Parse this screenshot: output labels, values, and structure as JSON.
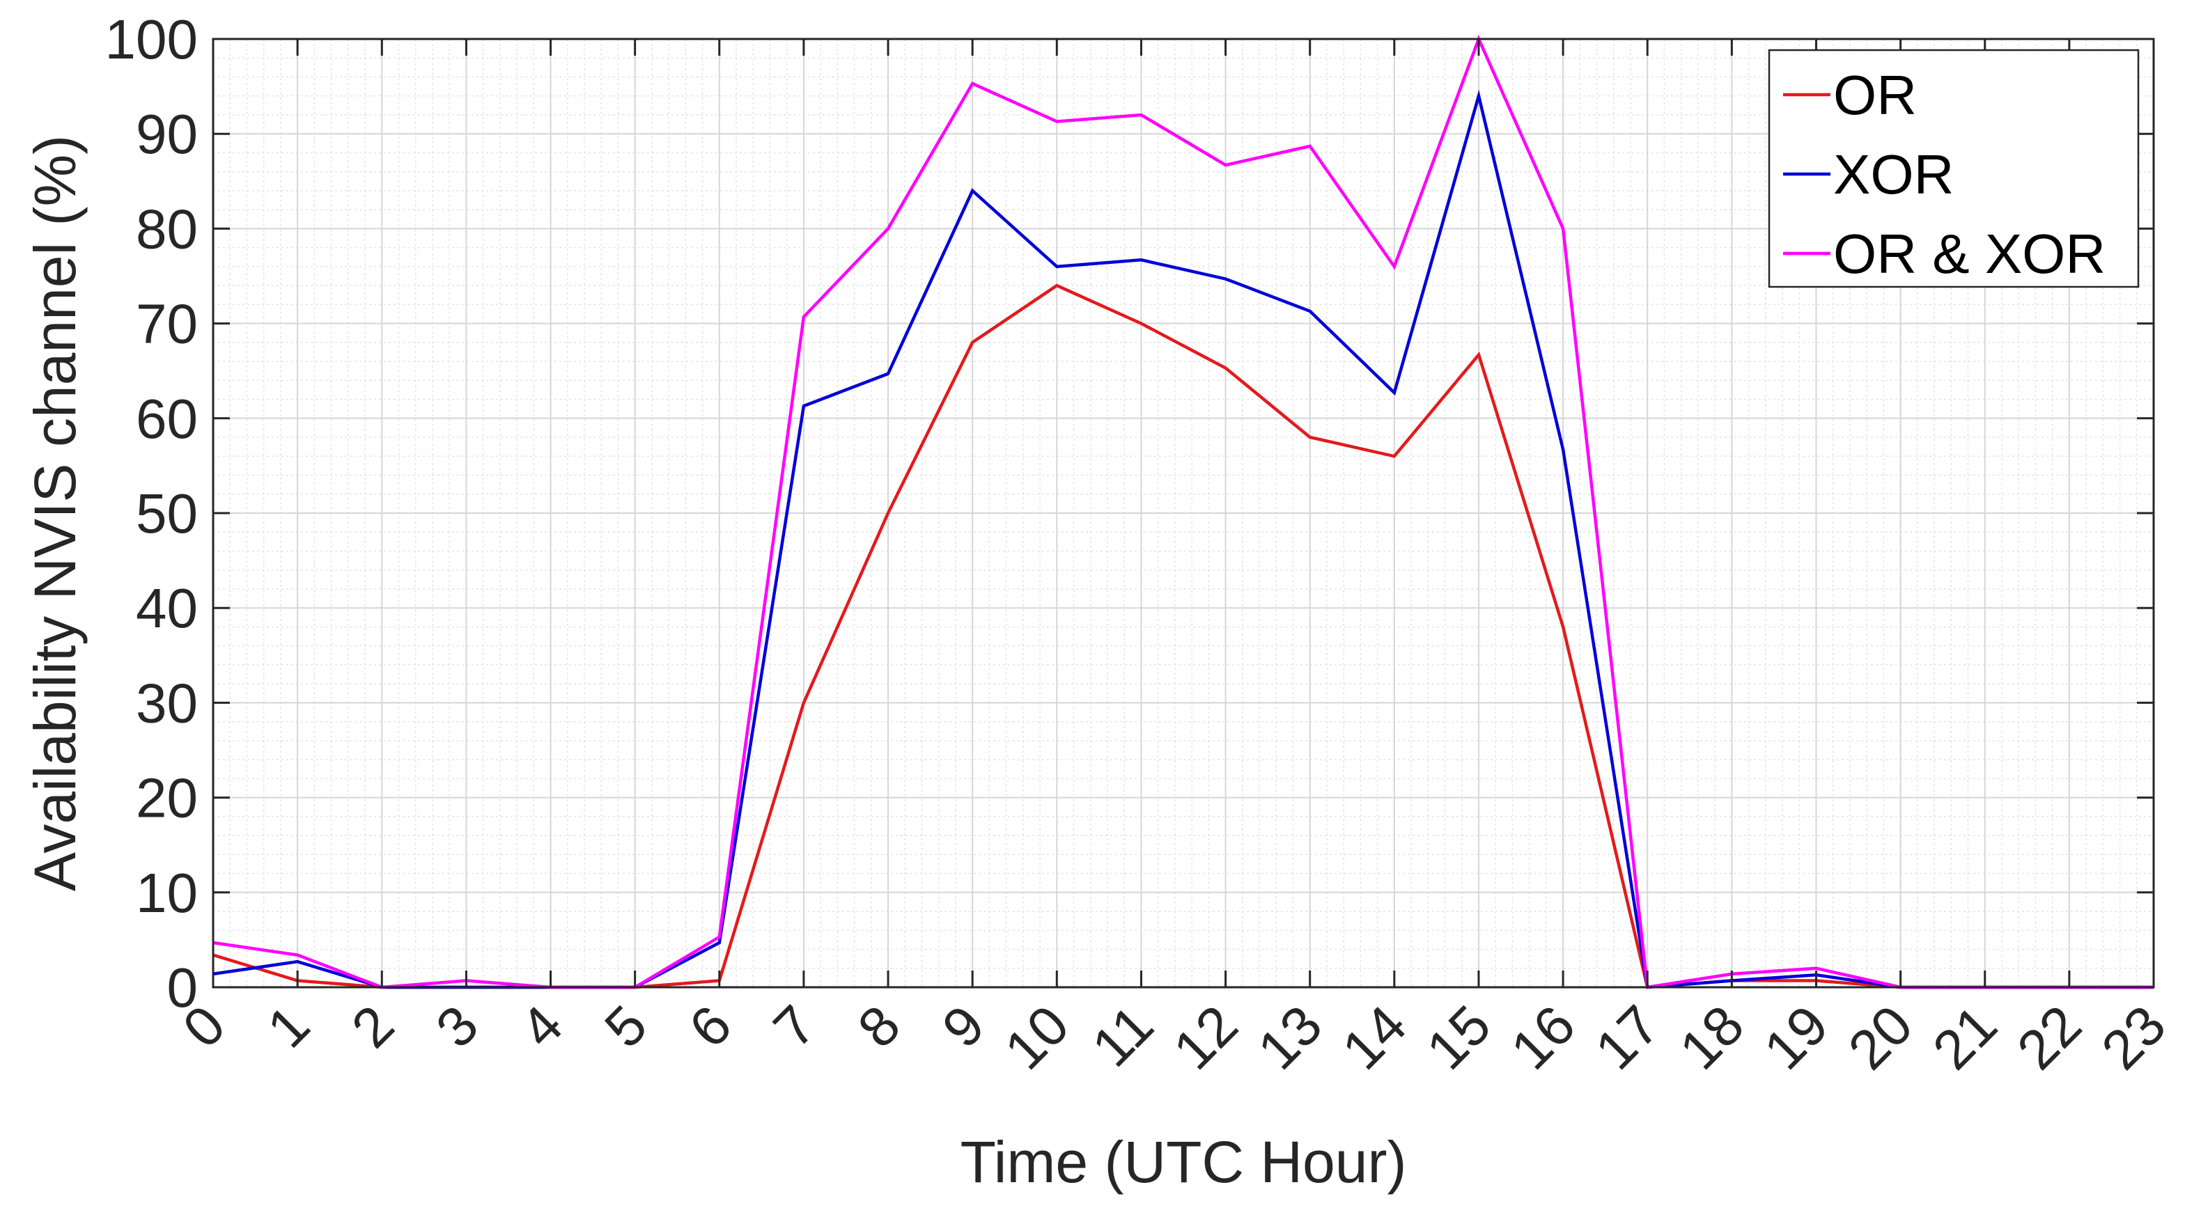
{
  "chart_data": {
    "type": "line",
    "xlabel": "Time (UTC Hour)",
    "ylabel": "Availability NVIS channel (%)",
    "xlim": [
      0,
      23
    ],
    "ylim": [
      0,
      100
    ],
    "x": [
      0,
      1,
      2,
      3,
      4,
      5,
      6,
      7,
      8,
      9,
      10,
      11,
      12,
      13,
      14,
      15,
      16,
      17,
      18,
      19,
      20,
      21,
      22,
      23
    ],
    "x_tick_labels": [
      "0",
      "1",
      "2",
      "3",
      "4",
      "5",
      "6",
      "7",
      "8",
      "9",
      "10",
      "11",
      "12",
      "13",
      "14",
      "15",
      "16",
      "17",
      "18",
      "19",
      "20",
      "21",
      "22",
      "23"
    ],
    "y_ticks": [
      0,
      10,
      20,
      30,
      40,
      50,
      60,
      70,
      80,
      90,
      100
    ],
    "y_tick_labels": [
      "0",
      "10",
      "20",
      "30",
      "40",
      "50",
      "60",
      "70",
      "80",
      "90",
      "100"
    ],
    "grid": true,
    "minor_grid": true,
    "legend_position": "top-right",
    "series": [
      {
        "name": "OR",
        "color": "#e31a1c",
        "values": [
          3.4,
          0.7,
          0,
          0,
          0,
          0,
          0.7,
          30,
          50,
          68,
          74,
          70,
          65.3,
          58,
          56,
          66.7,
          38,
          0,
          0.7,
          0.7,
          0,
          0,
          0,
          0
        ]
      },
      {
        "name": "XOR",
        "color": "#0000d8",
        "values": [
          1.4,
          2.7,
          0,
          0,
          0,
          0,
          4.7,
          61.3,
          64.7,
          84,
          76,
          76.7,
          74.7,
          71.3,
          62.7,
          94,
          56.7,
          0,
          0.7,
          1.3,
          0,
          0,
          0,
          0
        ]
      },
      {
        "name": "OR & XOR",
        "color": "#ff00ff",
        "values": [
          4.7,
          3.4,
          0,
          0.7,
          0,
          0,
          5.3,
          70.7,
          80,
          95.3,
          91.3,
          92,
          86.7,
          88.7,
          76,
          100,
          80,
          0,
          1.4,
          2,
          0,
          0,
          0,
          0
        ]
      }
    ]
  }
}
